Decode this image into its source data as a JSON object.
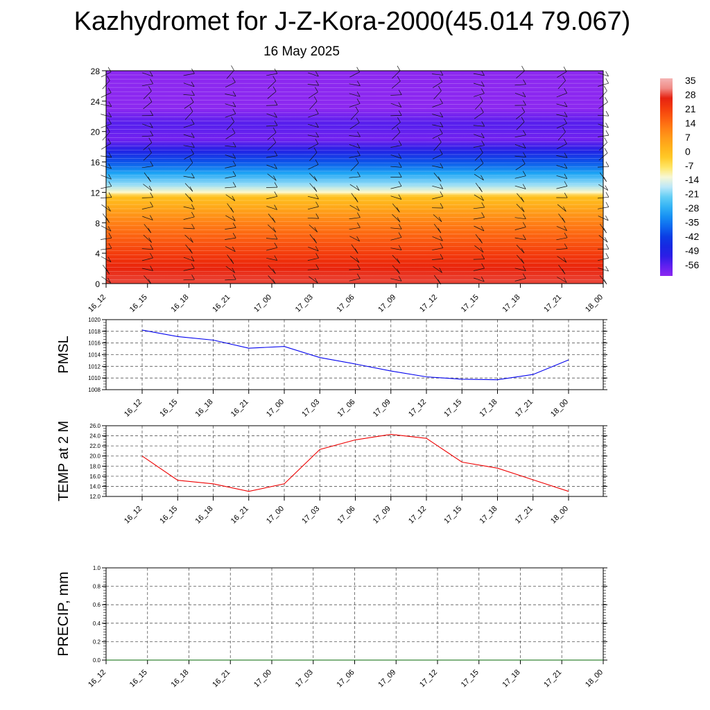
{
  "title": "Kazhydromet for J-Z-Kora-2000(45.014 79.067)",
  "subtitle": "16 May 2025",
  "colors": {
    "pmsl_line": "#0000ee",
    "temp_line": "#ee0000",
    "precip_line": "#006400",
    "grid": "#555555"
  },
  "chart_data": [
    {
      "type": "heatmap",
      "name": "temperature-height-section",
      "x_ticks": [
        "16_12",
        "16_15",
        "16_18",
        "16_21",
        "17_00",
        "17_03",
        "17_06",
        "17_09",
        "17_12",
        "17_15",
        "17_18",
        "17_21",
        "18_00"
      ],
      "y_ticks": [
        "0",
        "4",
        "8",
        "12",
        "16",
        "20",
        "24",
        "28"
      ],
      "ylim": [
        0,
        28
      ],
      "colorbar": {
        "labels": [
          "35",
          "28",
          "21",
          "14",
          "7",
          "0",
          "-7",
          "-14",
          "-21",
          "-28",
          "-35",
          "-42",
          "-49",
          "-56"
        ],
        "range": [
          -60,
          38
        ]
      },
      "profile": [
        {
          "h": 0,
          "t": 30
        },
        {
          "h": 2,
          "t": 27
        },
        {
          "h": 4,
          "t": 23
        },
        {
          "h": 6,
          "t": 18
        },
        {
          "h": 8,
          "t": 13
        },
        {
          "h": 10,
          "t": 6
        },
        {
          "h": 11.5,
          "t": 0
        },
        {
          "h": 12,
          "t": -10
        },
        {
          "h": 13,
          "t": -18
        },
        {
          "h": 14.5,
          "t": -28
        },
        {
          "h": 16,
          "t": -38
        },
        {
          "h": 17.5,
          "t": -48
        },
        {
          "h": 19,
          "t": -57
        },
        {
          "h": 21,
          "t": -54
        },
        {
          "h": 23,
          "t": -60
        },
        {
          "h": 28,
          "t": -60
        }
      ]
    },
    {
      "type": "line",
      "name": "PMSL",
      "ylabel": "PMSL",
      "x": [
        "16_12",
        "16_15",
        "16_18",
        "16_21",
        "17_00",
        "17_03",
        "17_06",
        "17_09",
        "17_12",
        "17_15",
        "17_18",
        "17_21",
        "18_00"
      ],
      "values": [
        1018.2,
        1017.1,
        1016.5,
        1015.1,
        1015.4,
        1013.5,
        1012.4,
        1011.2,
        1010.2,
        1009.8,
        1009.7,
        1010.6,
        1013.1
      ],
      "ylim": [
        1008,
        1020
      ],
      "y_ticks": [
        "1008",
        "1010",
        "1012",
        "1014",
        "1016",
        "1018",
        "1020"
      ]
    },
    {
      "type": "line",
      "name": "TEMP at 2 M",
      "ylabel": "TEMP at 2 M",
      "x": [
        "16_12",
        "16_15",
        "16_18",
        "16_21",
        "17_00",
        "17_03",
        "17_06",
        "17_09",
        "17_12",
        "17_15",
        "17_18",
        "17_21",
        "18_00"
      ],
      "values": [
        20.0,
        15.2,
        14.5,
        13.0,
        14.5,
        21.3,
        23.2,
        24.3,
        23.5,
        18.8,
        17.6,
        15.3,
        13.0
      ],
      "ylim": [
        12,
        26
      ],
      "y_ticks": [
        "12.0",
        "14.0",
        "16.0",
        "18.0",
        "20.0",
        "22.0",
        "24.0",
        "26.0"
      ]
    },
    {
      "type": "line",
      "name": "PRECIP, mm",
      "ylabel": "PRECIP, mm",
      "x": [
        "16_12",
        "16_15",
        "16_18",
        "16_21",
        "17_00",
        "17_03",
        "17_06",
        "17_09",
        "17_12",
        "17_15",
        "17_18",
        "17_21",
        "18_00"
      ],
      "values": [
        0,
        0,
        0,
        0,
        0,
        0,
        0,
        0,
        0,
        0,
        0,
        0,
        0
      ],
      "ylim": [
        0,
        1
      ],
      "y_ticks": [
        "0.0",
        "0.2",
        "0.4",
        "0.6",
        "0.8",
        "1.0"
      ]
    }
  ]
}
